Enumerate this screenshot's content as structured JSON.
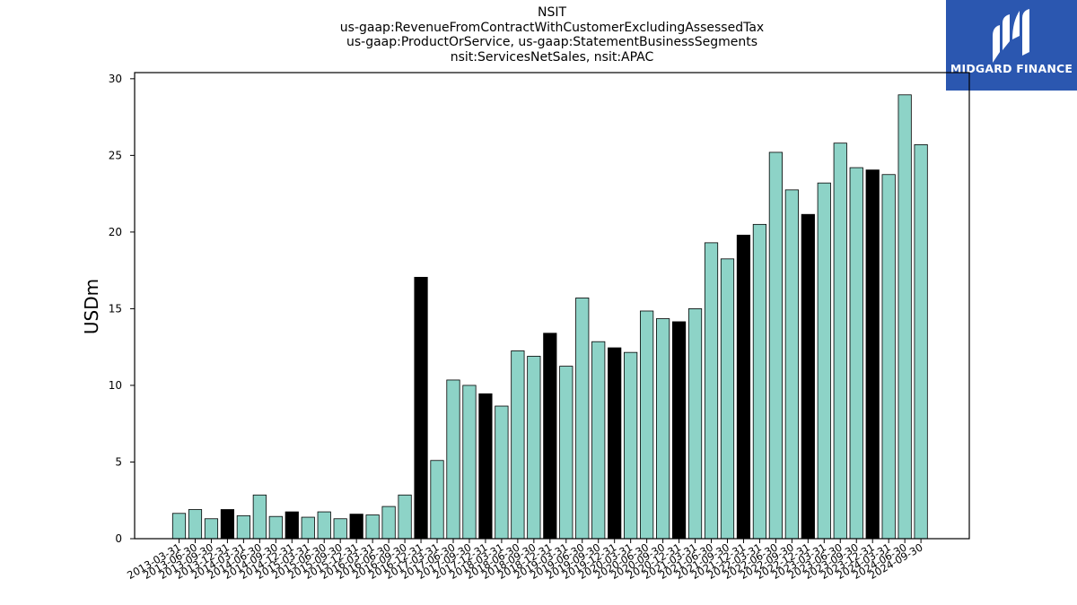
{
  "header": {
    "title_lines": [
      "NSIT",
      "us-gaap:RevenueFromContractWithCustomerExcludingAssessedTax",
      "us-gaap:ProductOrService, us-gaap:StatementBusinessSegments",
      "nsit:ServicesNetSales, nsit:APAC"
    ]
  },
  "logo": {
    "text": "MIDGARD FINANCE",
    "icon": "midgard-logo-icon",
    "background": "#2b57b0"
  },
  "colors": {
    "bar": "#8dd3c7",
    "bar_highlight": "#000000",
    "edge": "#000000"
  },
  "chart_data": {
    "type": "bar",
    "title": "NSIT us-gaap:RevenueFromContractWithCustomerExcludingAssessedTax us-gaap:ProductOrService, us-gaap:StatementBusinessSegments nsit:ServicesNetSales, nsit:APAC",
    "xlabel": "",
    "ylabel": "USDm",
    "ylim": [
      0,
      30.4
    ],
    "yticks": [
      0,
      5,
      10,
      15,
      20,
      25,
      30
    ],
    "grid": false,
    "categories": [
      "2013-03-31",
      "2013-06-30",
      "2013-09-30",
      "2013-12-31",
      "2014-03-31",
      "2014-06-30",
      "2014-09-30",
      "2014-12-31",
      "2015-03-31",
      "2015-06-30",
      "2015-09-30",
      "2015-12-31",
      "2016-03-31",
      "2016-06-30",
      "2016-09-30",
      "2016-12-31",
      "2017-03-31",
      "2017-06-30",
      "2017-09-30",
      "2017-12-31",
      "2018-03-31",
      "2018-06-30",
      "2018-09-30",
      "2018-12-31",
      "2019-03-31",
      "2019-06-30",
      "2019-09-30",
      "2019-12-31",
      "2020-03-31",
      "2020-06-30",
      "2020-09-30",
      "2020-12-31",
      "2021-03-31",
      "2021-06-30",
      "2021-09-30",
      "2021-12-31",
      "2022-03-31",
      "2022-06-30",
      "2022-09-30",
      "2022-12-31",
      "2023-03-31",
      "2023-06-30",
      "2023-09-30",
      "2023-12-31",
      "2024-03-31",
      "2024-06-30",
      "2024-09-30"
    ],
    "values": [
      1.65,
      1.9,
      1.3,
      1.9,
      1.5,
      2.85,
      1.45,
      1.75,
      1.4,
      1.75,
      1.3,
      1.6,
      1.55,
      2.1,
      2.85,
      17.05,
      5.1,
      10.35,
      10.0,
      9.45,
      8.65,
      12.25,
      11.9,
      13.4,
      11.25,
      15.7,
      12.85,
      12.45,
      12.15,
      14.85,
      14.35,
      14.15,
      15.0,
      19.3,
      18.25,
      19.8,
      20.5,
      25.2,
      22.75,
      21.15,
      23.2,
      25.8,
      24.2,
      24.05,
      23.75,
      28.95,
      25.7
    ],
    "highlight": [
      false,
      false,
      false,
      true,
      false,
      false,
      false,
      true,
      false,
      false,
      false,
      true,
      false,
      false,
      false,
      true,
      false,
      false,
      false,
      true,
      false,
      false,
      false,
      true,
      false,
      false,
      false,
      true,
      false,
      false,
      false,
      true,
      false,
      false,
      false,
      true,
      false,
      false,
      false,
      true,
      false,
      false,
      false,
      true,
      false,
      false,
      false
    ]
  }
}
